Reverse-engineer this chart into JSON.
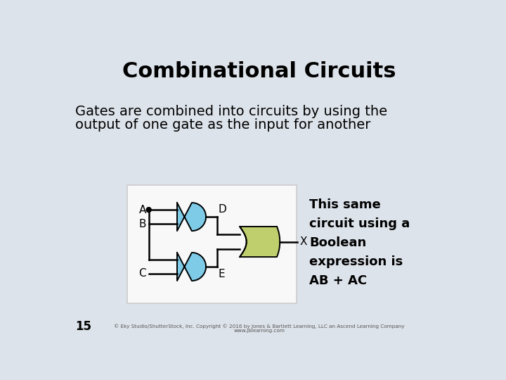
{
  "title": "Combinational Circuits",
  "subtitle_line1": "Gates are combined into circuits by using the",
  "subtitle_line2": "output of one gate as the input for another",
  "boolean_text": "This same\ncircuit using a\nBoolean\nexpression is\nAB + AC",
  "slide_number": "15",
  "copyright": "© Eky Studio/ShutterStock, Inc. Copyright © 2016 by Jones & Bartlett Learning, LLC an Ascend Learning Company",
  "copyright2": "www.jblearning.com",
  "bg_color": "#dde3ea",
  "title_color": "#000000",
  "text_color": "#000000",
  "and_gate_color": "#7ecbe8",
  "or_gate_color": "#bfcf6e",
  "wire_color": "#000000",
  "box_bg": "#f8f8f8",
  "box_edge": "#cccccc"
}
